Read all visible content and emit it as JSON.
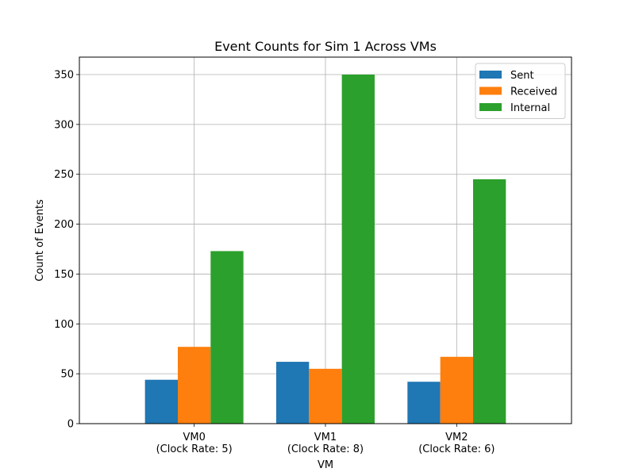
{
  "chart_data": {
    "type": "bar",
    "title": "Event Counts for Sim 1 Across VMs",
    "xlabel": "VM",
    "ylabel": "Count of Events",
    "categories": [
      [
        "VM0",
        "(Clock Rate: 5)"
      ],
      [
        "VM1",
        "(Clock Rate: 8)"
      ],
      [
        "VM2",
        "(Clock Rate: 6)"
      ]
    ],
    "series": [
      {
        "name": "Sent",
        "values": [
          44,
          62,
          42
        ],
        "color": "#1f77b4"
      },
      {
        "name": "Received",
        "values": [
          77,
          55,
          67
        ],
        "color": "#ff7f0e"
      },
      {
        "name": "Internal",
        "values": [
          173,
          350,
          245
        ],
        "color": "#2ca02c"
      }
    ],
    "ylim": [
      0,
      367.5
    ],
    "yticks": [
      0,
      50,
      100,
      150,
      200,
      250,
      300,
      350
    ],
    "grid": true,
    "legend_position": "top-right"
  }
}
